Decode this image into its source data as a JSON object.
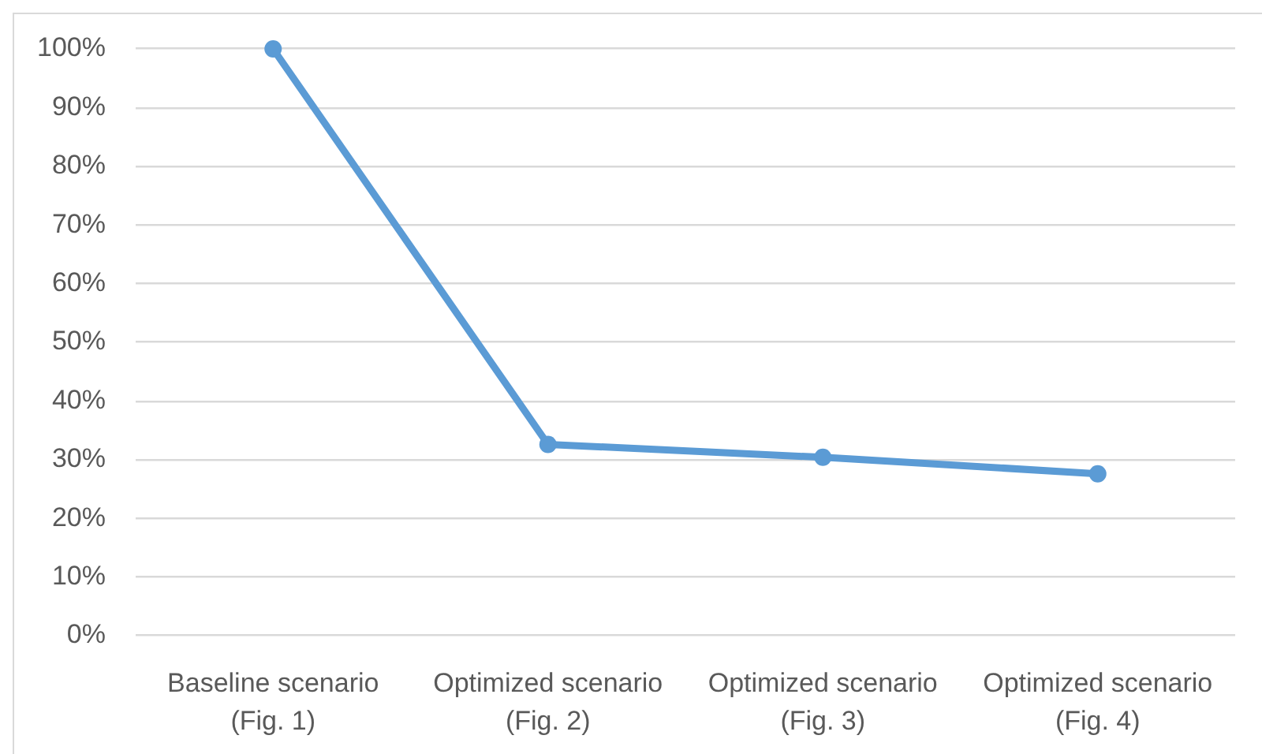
{
  "chart_data": {
    "type": "line",
    "categories": [
      "Baseline scenario\n(Fig. 1)",
      "Optimized scenario\n(Fig. 2)",
      "Optimized scenario\n(Fig. 3)",
      "Optimized scenario\n(Fig. 4)"
    ],
    "values": [
      100,
      32.6,
      30.4,
      27.6
    ],
    "color": "#5b9bd5",
    "ylim": [
      0,
      100
    ],
    "yticks": [
      {
        "value": 0,
        "label": "0%"
      },
      {
        "value": 10,
        "label": "10%"
      },
      {
        "value": 20,
        "label": "20%"
      },
      {
        "value": 30,
        "label": "30%"
      },
      {
        "value": 40,
        "label": "40%"
      },
      {
        "value": 50,
        "label": "50%"
      },
      {
        "value": 60,
        "label": "60%"
      },
      {
        "value": 70,
        "label": "70%"
      },
      {
        "value": 80,
        "label": "80%"
      },
      {
        "value": 90,
        "label": "90%"
      },
      {
        "value": 100,
        "label": "100%"
      }
    ],
    "grid": "y",
    "marker": "circle",
    "line_style": "solid",
    "legend": false
  }
}
